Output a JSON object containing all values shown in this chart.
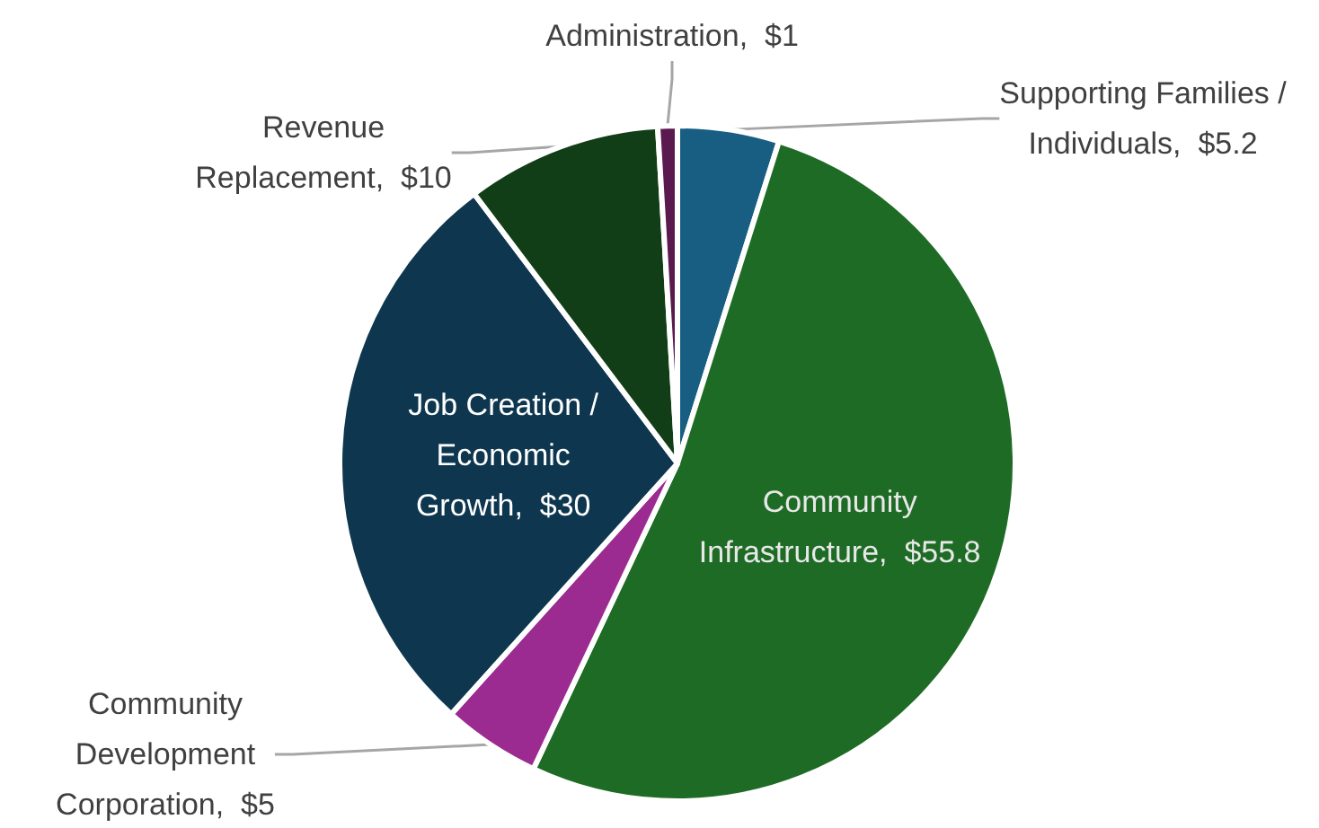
{
  "chart_data": {
    "type": "pie",
    "categories": [
      "Supporting Families / Individuals",
      "Community Infrastructure",
      "Community Development Corporation",
      "Job Creation / Economic Growth",
      "Revenue Replacement",
      "Administration"
    ],
    "values": [
      5.2,
      55.8,
      5,
      30,
      10,
      1
    ],
    "value_labels": [
      "$5.2",
      "$55.8",
      "$5",
      "$30",
      "$10",
      "$1"
    ],
    "colors": [
      "#175e82",
      "#1e6b25",
      "#9c2b91",
      "#0e374f",
      "#123e17",
      "#5a1a4f"
    ]
  }
}
